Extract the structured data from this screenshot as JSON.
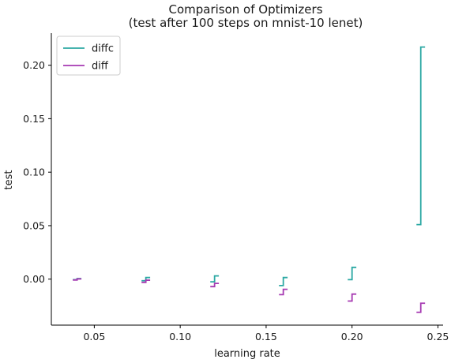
{
  "chart_data": {
    "type": "line",
    "title": "Comparison of Optimizers",
    "subtitle": "(test after 100 steps on mnist-10 lenet)",
    "xlabel": "learning rate",
    "ylabel": "test",
    "xlim": [
      0.025,
      0.253
    ],
    "ylim": [
      -0.043,
      0.23
    ],
    "xticks": [
      0.05,
      0.1,
      0.15,
      0.2,
      0.25
    ],
    "xtick_labels": [
      "0.05",
      "0.10",
      "0.15",
      "0.20",
      "0.25"
    ],
    "yticks": [
      0.0,
      0.05,
      0.1,
      0.15,
      0.2
    ],
    "ytick_labels": [
      "0.00",
      "0.05",
      "0.10",
      "0.15",
      "0.20"
    ],
    "grid": false,
    "legend_position": "top-left",
    "series": [
      {
        "name": "diffc",
        "color": "#2ba8a3",
        "points": [
          {
            "x": 0.04,
            "y0": -0.0005,
            "y1": 0.0005
          },
          {
            "x": 0.08,
            "y0": -0.0015,
            "y1": 0.0015
          },
          {
            "x": 0.12,
            "y0": -0.0025,
            "y1": 0.003
          },
          {
            "x": 0.16,
            "y0": -0.006,
            "y1": 0.0015
          },
          {
            "x": 0.2,
            "y0": -0.0005,
            "y1": 0.011
          },
          {
            "x": 0.24,
            "y0": 0.051,
            "y1": 0.217
          }
        ]
      },
      {
        "name": "diff",
        "color": "#a63ab2",
        "points": [
          {
            "x": 0.04,
            "y0": -0.0008,
            "y1": 0.0002
          },
          {
            "x": 0.08,
            "y0": -0.003,
            "y1": -0.001
          },
          {
            "x": 0.12,
            "y0": -0.007,
            "y1": -0.004
          },
          {
            "x": 0.16,
            "y0": -0.0145,
            "y1": -0.0095
          },
          {
            "x": 0.2,
            "y0": -0.0205,
            "y1": -0.014
          },
          {
            "x": 0.24,
            "y0": -0.031,
            "y1": -0.0225
          }
        ]
      }
    ]
  }
}
